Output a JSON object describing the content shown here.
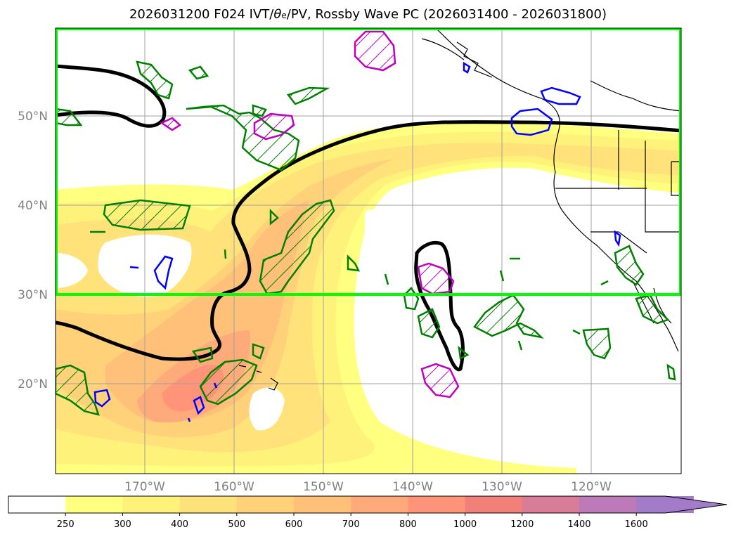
{
  "title": {
    "prefix": "2026031200 F024 IVT/",
    "theta": "θ",
    "theta_sub": "e",
    "suffix": "/PV, Rossby Wave PC (2026031400 - 2026031800)"
  },
  "axes": {
    "lat_labels": [
      "50°N",
      "40°N",
      "30°N",
      "20°N"
    ],
    "lon_labels": [
      "170°W",
      "160°W",
      "150°W",
      "140°W",
      "130°W",
      "120°W"
    ]
  },
  "colorbar": {
    "levels": [
      "250",
      "300",
      "400",
      "500",
      "600",
      "700",
      "800",
      "1000",
      "1200",
      "1400",
      "1600"
    ],
    "colors": [
      "#ffffff",
      "#ffff80",
      "#fff27a",
      "#ffe27a",
      "#ffd27a",
      "#ffc07a",
      "#ffaa7a",
      "#ff9478",
      "#f08078",
      "#d77d98",
      "#bc7ab8",
      "#a27cc8"
    ]
  },
  "colors": {
    "box": "#00ff00",
    "wave_contour": "#000000",
    "pv_green": "#008000",
    "pv_magenta": "#c000c0",
    "pv_blue": "#0000ff",
    "grid": "#a0a0a0"
  }
}
